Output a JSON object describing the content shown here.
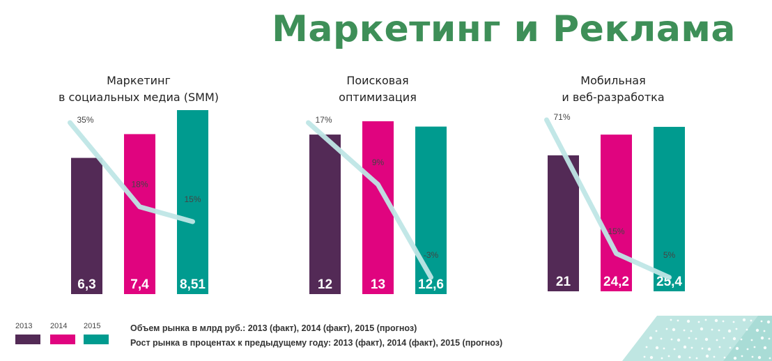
{
  "title": "Маркетинг и Реклама",
  "colors": {
    "title": "#3e8f58",
    "growth_line": "#bfe6e6",
    "bar_label": "#ffffff",
    "pct_label": "#444444",
    "decor_bg": "#bfe6e2"
  },
  "legend": [
    {
      "label": "2013",
      "color": "#532a56"
    },
    {
      "label": "2014",
      "color": "#e0047f"
    },
    {
      "label": "2015",
      "color": "#009b8f"
    }
  ],
  "notes": {
    "volume": "Объем рынка в млрд руб.: 2013 (факт), 2014 (факт), 2015 (прогноз)",
    "growth": "Рост рынка в процентах к предыдущему году: 2013 (факт), 2014 (факт), 2015 (прогноз)"
  },
  "chart_data": [
    {
      "type": "bar",
      "title_lines": [
        "Маркетинг",
        "в социальных медиа (SMM)"
      ],
      "categories": [
        "2013",
        "2014",
        "2015"
      ],
      "series": [
        {
          "name": "Объем рынка в млрд руб.",
          "values": [
            6.3,
            7.4,
            8.51
          ],
          "labels": [
            "6,3",
            "7,4",
            "8,51"
          ]
        },
        {
          "name": "Рост рынка в процентах к предыдущему году",
          "type": "line",
          "values": [
            35,
            18,
            15
          ],
          "labels": [
            "35%",
            "18%",
            "15%"
          ]
        }
      ]
    },
    {
      "type": "bar",
      "title_lines": [
        "Поисковая",
        "оптимизация"
      ],
      "categories": [
        "2013",
        "2014",
        "2015"
      ],
      "series": [
        {
          "name": "Объем рынка в млрд руб.",
          "values": [
            12,
            13,
            12.6
          ],
          "labels": [
            "12",
            "13",
            "12,6"
          ]
        },
        {
          "name": "Рост рынка в процентах к предыдущему году",
          "type": "line",
          "values": [
            17,
            9,
            -3
          ],
          "labels": [
            "17%",
            "9%",
            "-3%"
          ]
        }
      ]
    },
    {
      "type": "bar",
      "title_lines": [
        "Мобильная",
        "и веб-разработка"
      ],
      "categories": [
        "2013",
        "2014",
        "2015"
      ],
      "series": [
        {
          "name": "Объем рынка в млрд руб.",
          "values": [
            21,
            24.2,
            25.4
          ],
          "labels": [
            "21",
            "24,2",
            "25,4"
          ]
        },
        {
          "name": "Рост рынка в процентах к предыдущему году",
          "type": "line",
          "values": [
            71,
            15,
            5
          ],
          "labels": [
            "71%",
            "15%",
            "5%"
          ]
        }
      ]
    }
  ]
}
